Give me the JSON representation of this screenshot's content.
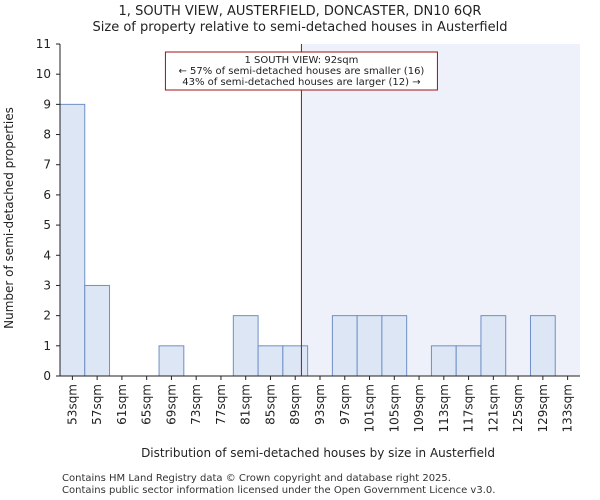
{
  "chart_data": {
    "type": "bar",
    "title": "1, SOUTH VIEW, AUSTERFIELD, DONCASTER, DN10 6QR",
    "subtitle": "Size of property relative to semi-detached houses in Austerfield",
    "xlabel": "Distribution of semi-detached houses by size in Austerfield",
    "ylabel": "Number of semi-detached properties",
    "categories": [
      "53sqm",
      "57sqm",
      "61sqm",
      "65sqm",
      "69sqm",
      "73sqm",
      "77sqm",
      "81sqm",
      "85sqm",
      "89sqm",
      "93sqm",
      "97sqm",
      "101sqm",
      "105sqm",
      "109sqm",
      "113sqm",
      "117sqm",
      "121sqm",
      "125sqm",
      "129sqm",
      "133sqm"
    ],
    "values": [
      9,
      3,
      0,
      0,
      1,
      0,
      0,
      2,
      1,
      1,
      0,
      2,
      2,
      2,
      0,
      1,
      1,
      2,
      0,
      2,
      0
    ],
    "ylim": [
      0,
      11
    ],
    "yticks": [
      0,
      1,
      2,
      3,
      4,
      5,
      6,
      7,
      8,
      9,
      10,
      11
    ],
    "subject_value": 92,
    "bin_start": 53,
    "bin_width": 4,
    "highlight_region": "larger than subject property",
    "annotation": {
      "line1": "1 SOUTH VIEW: 92sqm",
      "line2": "← 57% of semi-detached houses are smaller (16)",
      "line3": "43% of semi-detached houses are larger (12) →"
    },
    "colors": {
      "bar_fill": "#dce6f5",
      "bar_stroke": "#6f8fc7",
      "marker_line": "#a01010",
      "highlight_bg": "#eef1fa"
    }
  },
  "footer": {
    "line1": "Contains HM Land Registry data © Crown copyright and database right 2025.",
    "line2": "Contains public sector information licensed under the Open Government Licence v3.0."
  }
}
